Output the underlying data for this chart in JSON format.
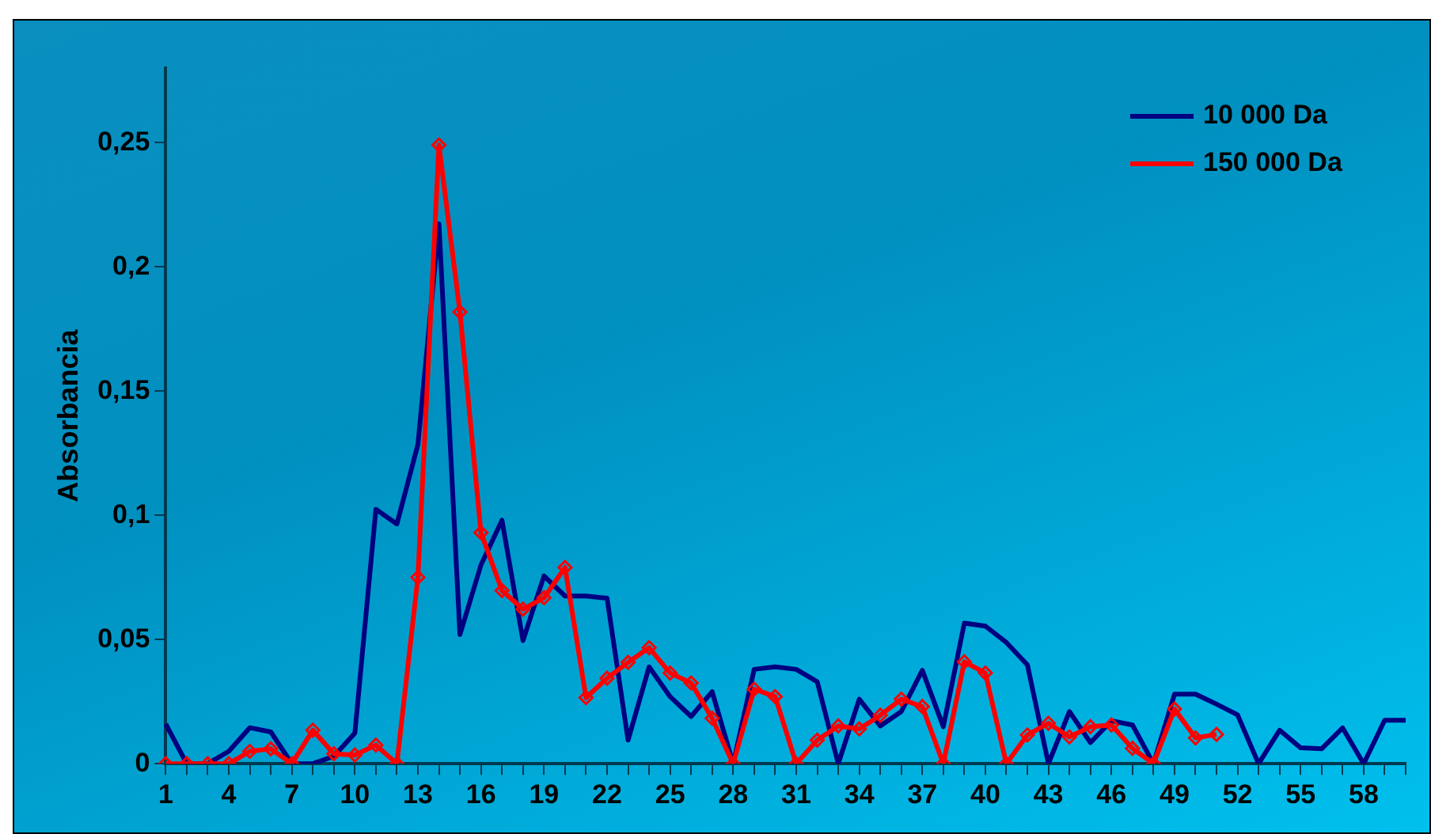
{
  "chart_data": {
    "type": "line",
    "ylabel": "Absorbancia",
    "categories": [
      "1",
      null,
      null,
      "4",
      null,
      null,
      "7",
      null,
      null,
      "10",
      null,
      null,
      "13",
      null,
      null,
      "16",
      null,
      null,
      "19",
      null,
      null,
      "22",
      null,
      null,
      "25",
      null,
      null,
      "28",
      null,
      null,
      "31",
      null,
      null,
      "34",
      null,
      null,
      "37",
      null,
      null,
      "40",
      null,
      null,
      "43",
      null,
      null,
      "46",
      null,
      null,
      "49",
      null,
      null,
      "52",
      null,
      null,
      "55",
      null,
      null,
      "58",
      null,
      null
    ],
    "series": [
      {
        "name": "10 000 Da",
        "color": "#000080",
        "marker": "none",
        "values": [
          0.016,
          0,
          0,
          0.005,
          0.0145,
          0.0128,
          0,
          0,
          0.003,
          0.0123,
          0.1024,
          0.0965,
          0.1285,
          0.2173,
          0.052,
          0.08,
          0.098,
          0.0496,
          0.0756,
          0.0675,
          0.0675,
          0.0666,
          0.0095,
          0.039,
          0.027,
          0.019,
          0.029,
          0,
          0.038,
          0.039,
          0.038,
          0.033,
          0,
          0.026,
          0.0152,
          0.021,
          0.0376,
          0.0149,
          0.0566,
          0.0554,
          0.0488,
          0.0398,
          0,
          0.021,
          0.0085,
          0.0173,
          0.0156,
          0,
          0.028,
          0.028,
          0.024,
          0.0197,
          0,
          0.0135,
          0.0064,
          0.006,
          0.0144,
          0,
          0.0175,
          0.0175
        ]
      },
      {
        "name": "150 000 Da",
        "color": "#ff0000",
        "marker": "diamond",
        "values": [
          0,
          0,
          0,
          0,
          0.005,
          0.006,
          0,
          0.0135,
          0.004,
          0.0035,
          0.0075,
          0,
          0.075,
          0.249,
          0.1818,
          0.093,
          0.0697,
          0.0622,
          0.0668,
          0.079,
          0.0266,
          0.0344,
          0.0408,
          0.0467,
          0.0365,
          0.0325,
          0.0183,
          0,
          0.03,
          0.027,
          0,
          0.0095,
          0.0152,
          0.014,
          0.0195,
          0.026,
          0.023,
          0,
          0.041,
          0.0365,
          0,
          0.0116,
          0.0163,
          0.0108,
          0.0149,
          0.0156,
          0.0062,
          0,
          0.022,
          0.0104,
          0.0118,
          null,
          null,
          null,
          null,
          null,
          null,
          null,
          null,
          null
        ]
      }
    ],
    "ylim": [
      0,
      0.28
    ],
    "yticks": [
      {
        "value": 0,
        "label": "0"
      },
      {
        "value": 0.05,
        "label": "0,05"
      },
      {
        "value": 0.1,
        "label": "0,1"
      },
      {
        "value": 0.15,
        "label": "0,15"
      },
      {
        "value": 0.2,
        "label": "0,2"
      },
      {
        "value": 0.25,
        "label": "0,25"
      }
    ],
    "grid": false,
    "legend": "top right"
  }
}
